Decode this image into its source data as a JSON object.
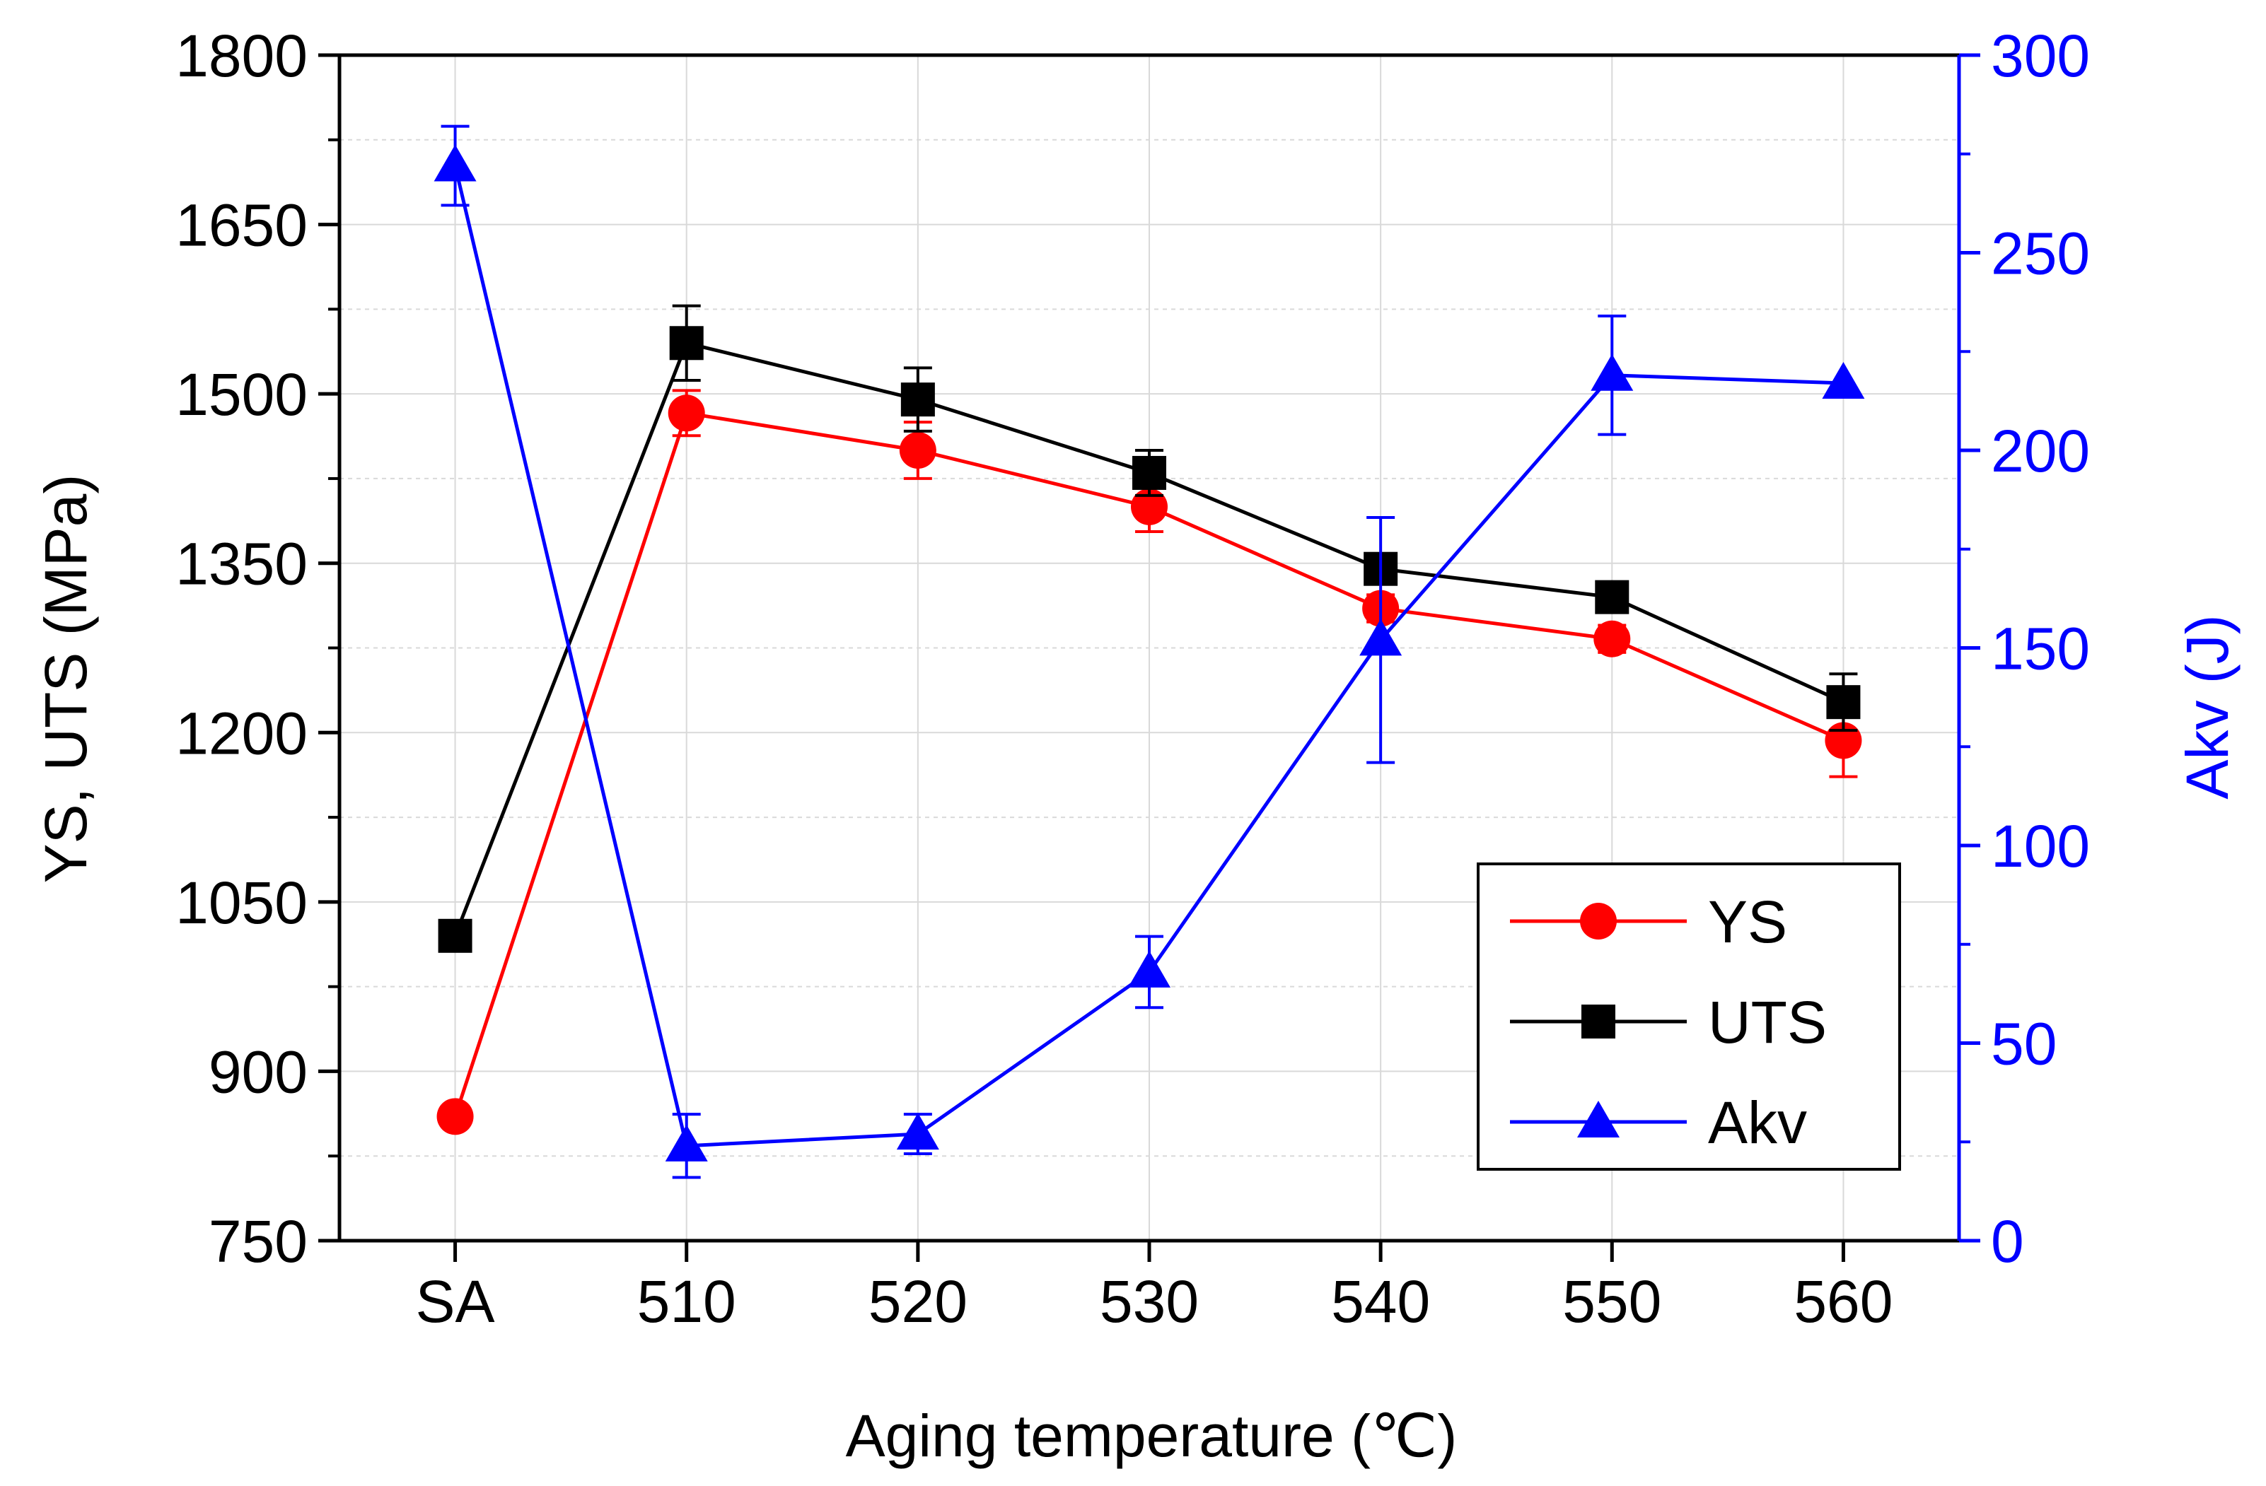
{
  "chart_data": {
    "type": "line",
    "title": "",
    "xlabel": "Aging temperature (℃)",
    "ylabel_left": "YS, UTS (MPa)",
    "ylabel_right": "Akv (J)",
    "categories": [
      "SA",
      "510",
      "520",
      "530",
      "540",
      "550",
      "560"
    ],
    "ylim_left": [
      750,
      1800
    ],
    "yticks_left": [
      750,
      900,
      1050,
      1200,
      1350,
      1500,
      1650,
      1800
    ],
    "ylim_right": [
      0,
      300
    ],
    "yticks_right": [
      0,
      50,
      100,
      150,
      200,
      250,
      300
    ],
    "grid": true,
    "legend_position": "bottom-right",
    "series": [
      {
        "name": "YS",
        "axis": "left",
        "color": "#ff0000",
        "marker": "circle",
        "values": [
          860,
          1483,
          1450,
          1400,
          1310,
          1283,
          1193
        ],
        "errors": [
          null,
          20,
          25,
          22,
          12,
          12,
          32
        ]
      },
      {
        "name": "UTS",
        "axis": "left",
        "color": "#000000",
        "marker": "square",
        "values": [
          1020,
          1545,
          1495,
          1430,
          1345,
          1320,
          1227
        ],
        "errors": [
          null,
          33,
          28,
          20,
          12,
          10,
          25
        ]
      },
      {
        "name": "Akv",
        "axis": "right",
        "color": "#0000ff",
        "marker": "triangle",
        "values": [
          272,
          24,
          27,
          68,
          152,
          219,
          217
        ],
        "errors": [
          10,
          8,
          5,
          9,
          31,
          15,
          null
        ]
      }
    ]
  }
}
